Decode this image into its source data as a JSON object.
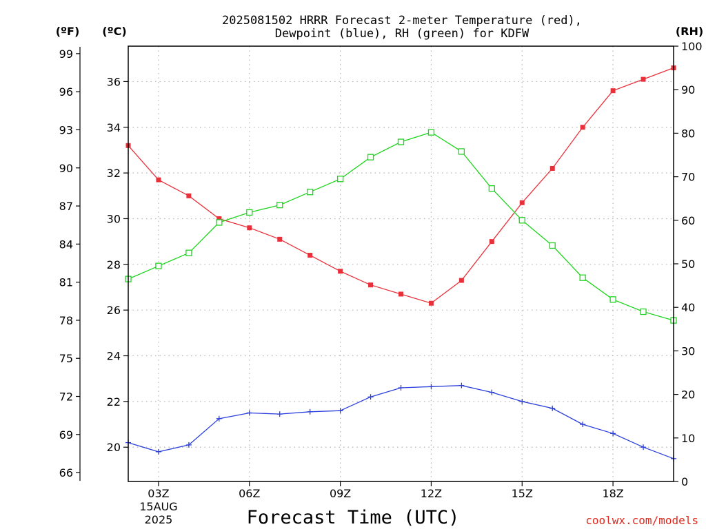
{
  "chart_data": {
    "type": "line",
    "title_line1": "2025081502 HRRR Forecast 2-meter Temperature (red),",
    "title_line2": "Dewpoint (blue), RH (green) for KDFW",
    "xlabel": "Forecast Time (UTC)",
    "credit": "coolwx.com/models",
    "units": {
      "fahrenheit": "(ºF)",
      "celsius": "(ºC)",
      "rh": "(RH)"
    },
    "x_range": [
      2,
      20
    ],
    "x_ticks": [
      {
        "x": 3,
        "label": "03Z",
        "sub1": "15AUG",
        "sub2": "2025"
      },
      {
        "x": 6,
        "label": "06Z"
      },
      {
        "x": 9,
        "label": "09Z"
      },
      {
        "x": 12,
        "label": "12Z"
      },
      {
        "x": 15,
        "label": "15Z"
      },
      {
        "x": 18,
        "label": "18Z"
      }
    ],
    "celsius_axis": {
      "min": 18.5,
      "max": 37.55,
      "ticks": [
        "20",
        "22",
        "24",
        "26",
        "28",
        "30",
        "32",
        "34",
        "36"
      ]
    },
    "fahrenheit_ticks": [
      "66",
      "69",
      "72",
      "75",
      "78",
      "81",
      "84",
      "87",
      "90",
      "93",
      "96",
      "99"
    ],
    "rh_axis": {
      "min": 0,
      "max": 100,
      "ticks": [
        "0",
        "10",
        "20",
        "30",
        "40",
        "50",
        "60",
        "70",
        "80",
        "90",
        "100"
      ]
    },
    "grid": true,
    "series": [
      {
        "name": "Temperature",
        "axis": "celsius",
        "color": "#e8303a",
        "marker": "filled-square",
        "x": [
          2,
          3,
          4,
          5,
          6,
          7,
          8,
          9,
          10,
          11,
          12,
          13,
          14,
          15,
          16,
          17,
          18,
          19,
          20
        ],
        "values": [
          33.2,
          31.7,
          31.0,
          30.0,
          29.6,
          29.1,
          28.4,
          27.7,
          27.1,
          26.7,
          26.3,
          27.3,
          29.0,
          30.7,
          32.2,
          34.0,
          35.6,
          36.1,
          36.6
        ]
      },
      {
        "name": "Dewpoint",
        "axis": "celsius",
        "color": "#2b3fdc",
        "marker": "plus",
        "x": [
          2,
          3,
          4,
          5,
          6,
          7,
          8,
          9,
          10,
          11,
          12,
          13,
          14,
          15,
          16,
          17,
          18,
          19,
          20
        ],
        "values": [
          20.2,
          19.8,
          20.1,
          21.25,
          21.5,
          21.45,
          21.55,
          21.6,
          22.2,
          22.6,
          22.65,
          22.7,
          22.4,
          22.0,
          21.7,
          21.0,
          20.6,
          20.0,
          19.5
        ]
      },
      {
        "name": "RH",
        "axis": "rh",
        "color": "#1fd41f",
        "marker": "open-square",
        "x": [
          2,
          3,
          4,
          5,
          6,
          7,
          8,
          9,
          10,
          11,
          12,
          13,
          14,
          15,
          16,
          17,
          18,
          19,
          20
        ],
        "values": [
          46.5,
          49.5,
          52.5,
          59.5,
          61.8,
          63.5,
          66.5,
          69.5,
          74.5,
          78.0,
          80.2,
          75.8,
          67.3,
          60.0,
          54.2,
          46.8,
          41.8,
          39.0,
          37.0
        ]
      }
    ]
  }
}
